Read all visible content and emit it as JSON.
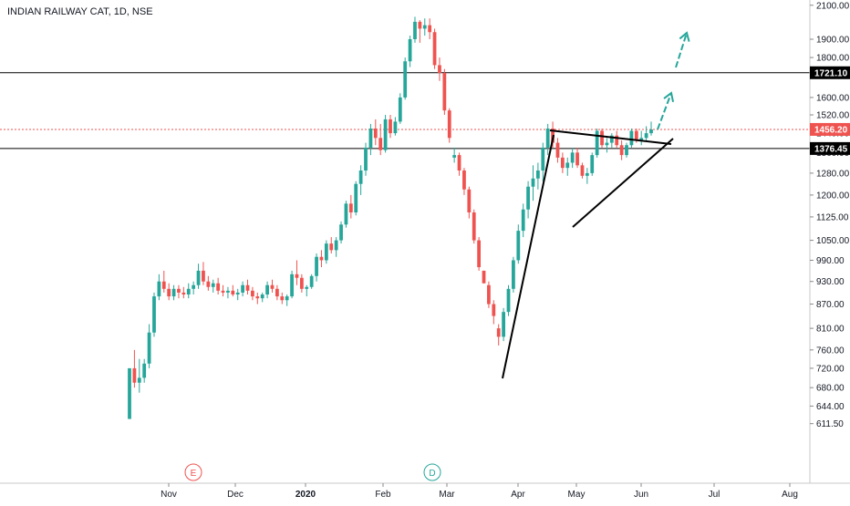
{
  "chart_data": {
    "type": "candlestick",
    "title": "INDIAN RAILWAY CAT, 1D, NSE",
    "y_scale": "log",
    "ylim": [
      600,
      2100
    ],
    "y_ticks": [
      "2100.00",
      "1900.00",
      "1800.00",
      "1600.00",
      "1520.00",
      "1440.00",
      "1360.00",
      "1280.00",
      "1200.00",
      "1125.00",
      "1050.00",
      "990.00",
      "930.00",
      "870.00",
      "810.00",
      "760.00",
      "720.00",
      "680.00",
      "644.00",
      "611.50"
    ],
    "x_labels": [
      {
        "label": "Nov",
        "bold": false
      },
      {
        "label": "Dec",
        "bold": false
      },
      {
        "label": "2020",
        "bold": true
      },
      {
        "label": "Feb",
        "bold": false
      },
      {
        "label": "Mar",
        "bold": false
      },
      {
        "label": "Apr",
        "bold": false
      },
      {
        "label": "May",
        "bold": false
      },
      {
        "label": "Jun",
        "bold": false
      },
      {
        "label": "Jul",
        "bold": false
      },
      {
        "label": "Aug",
        "bold": false
      }
    ],
    "colors": {
      "up": "#26a69a",
      "down": "#ef5350",
      "line": "#000000",
      "arrow": "#26a69a",
      "current": "#ef5350",
      "earnings": "#ef5350",
      "dividend": "#26a69a"
    },
    "price_levels": [
      {
        "value": 1721.1,
        "label": "1721.10",
        "style": "solid",
        "color": "#000000"
      },
      {
        "value": 1456.2,
        "label": "1456.20",
        "style": "dotted",
        "color": "#ef5350"
      },
      {
        "value": 1376.45,
        "label": "1376.45",
        "style": "solid",
        "color": "#000000"
      }
    ],
    "events": [
      {
        "label": "E",
        "kind": "earnings",
        "month": "Nov"
      },
      {
        "label": "D",
        "kind": "dividend",
        "month": "Feb"
      }
    ],
    "candles": [
      [
        620,
        720,
        620,
        720
      ],
      [
        720,
        760,
        680,
        690
      ],
      [
        690,
        740,
        670,
        700
      ],
      [
        700,
        740,
        690,
        730
      ],
      [
        730,
        820,
        720,
        800
      ],
      [
        800,
        900,
        790,
        890
      ],
      [
        890,
        950,
        880,
        930
      ],
      [
        930,
        960,
        900,
        910
      ],
      [
        910,
        925,
        880,
        890
      ],
      [
        890,
        920,
        880,
        910
      ],
      [
        910,
        920,
        885,
        900
      ],
      [
        900,
        915,
        885,
        895
      ],
      [
        895,
        925,
        885,
        910
      ],
      [
        910,
        930,
        895,
        920
      ],
      [
        920,
        980,
        910,
        960
      ],
      [
        960,
        985,
        920,
        930
      ],
      [
        930,
        945,
        905,
        915
      ],
      [
        915,
        935,
        900,
        925
      ],
      [
        925,
        940,
        895,
        905
      ],
      [
        905,
        920,
        890,
        900
      ],
      [
        900,
        915,
        885,
        905
      ],
      [
        905,
        920,
        890,
        895
      ],
      [
        895,
        910,
        880,
        900
      ],
      [
        900,
        930,
        890,
        920
      ],
      [
        920,
        935,
        895,
        905
      ],
      [
        905,
        915,
        880,
        890
      ],
      [
        890,
        900,
        870,
        885
      ],
      [
        885,
        900,
        875,
        895
      ],
      [
        895,
        930,
        885,
        920
      ],
      [
        920,
        935,
        900,
        910
      ],
      [
        910,
        920,
        880,
        890
      ],
      [
        890,
        900,
        870,
        880
      ],
      [
        880,
        895,
        865,
        890
      ],
      [
        890,
        960,
        885,
        950
      ],
      [
        950,
        990,
        920,
        940
      ],
      [
        940,
        950,
        900,
        910
      ],
      [
        910,
        920,
        890,
        915
      ],
      [
        915,
        950,
        910,
        945
      ],
      [
        945,
        1010,
        930,
        1000
      ],
      [
        1000,
        1020,
        970,
        990
      ],
      [
        990,
        1050,
        980,
        1040
      ],
      [
        1040,
        1060,
        1010,
        1020
      ],
      [
        1020,
        1060,
        1000,
        1050
      ],
      [
        1050,
        1110,
        1040,
        1100
      ],
      [
        1100,
        1180,
        1090,
        1170
      ],
      [
        1170,
        1200,
        1120,
        1140
      ],
      [
        1140,
        1250,
        1130,
        1240
      ],
      [
        1240,
        1310,
        1200,
        1290
      ],
      [
        1290,
        1400,
        1270,
        1380
      ],
      [
        1380,
        1480,
        1350,
        1460
      ],
      [
        1460,
        1500,
        1390,
        1420
      ],
      [
        1420,
        1480,
        1350,
        1370
      ],
      [
        1370,
        1520,
        1360,
        1500
      ],
      [
        1500,
        1520,
        1420,
        1440
      ],
      [
        1440,
        1510,
        1430,
        1490
      ],
      [
        1490,
        1620,
        1480,
        1600
      ],
      [
        1600,
        1800,
        1590,
        1780
      ],
      [
        1780,
        1920,
        1750,
        1900
      ],
      [
        1900,
        2030,
        1880,
        2000
      ],
      [
        2000,
        2010,
        1880,
        1960
      ],
      [
        1960,
        2020,
        1920,
        1980
      ],
      [
        1980,
        2020,
        1900,
        1940
      ],
      [
        1940,
        1960,
        1740,
        1760
      ],
      [
        1760,
        1800,
        1680,
        1720
      ],
      [
        1720,
        1740,
        1520,
        1540
      ],
      [
        1540,
        1550,
        1400,
        1420
      ],
      [
        1340,
        1380,
        1320,
        1350
      ],
      [
        1350,
        1360,
        1270,
        1290
      ],
      [
        1290,
        1300,
        1200,
        1220
      ],
      [
        1220,
        1230,
        1120,
        1140
      ],
      [
        1140,
        1150,
        1040,
        1050
      ],
      [
        1050,
        1060,
        960,
        970
      ],
      [
        960,
        960,
        925,
        925
      ],
      [
        920,
        930,
        860,
        870
      ],
      [
        870,
        880,
        820,
        840
      ],
      [
        810,
        820,
        770,
        790
      ],
      [
        790,
        860,
        780,
        850
      ],
      [
        850,
        920,
        840,
        910
      ],
      [
        910,
        1000,
        900,
        990
      ],
      [
        990,
        1100,
        980,
        1080
      ],
      [
        1080,
        1170,
        1060,
        1150
      ],
      [
        1150,
        1250,
        1120,
        1230
      ],
      [
        1230,
        1310,
        1180,
        1260
      ],
      [
        1260,
        1320,
        1220,
        1290
      ],
      [
        1290,
        1400,
        1250,
        1380
      ],
      [
        1380,
        1480,
        1350,
        1460
      ],
      [
        1460,
        1490,
        1380,
        1400
      ],
      [
        1400,
        1420,
        1320,
        1340
      ],
      [
        1340,
        1360,
        1280,
        1300
      ],
      [
        1300,
        1340,
        1270,
        1320
      ],
      [
        1320,
        1380,
        1300,
        1360
      ],
      [
        1360,
        1380,
        1300,
        1310
      ],
      [
        1310,
        1320,
        1260,
        1270
      ],
      [
        1270,
        1300,
        1240,
        1280
      ],
      [
        1280,
        1360,
        1270,
        1350
      ],
      [
        1350,
        1460,
        1340,
        1450
      ],
      [
        1450,
        1460,
        1380,
        1390
      ],
      [
        1390,
        1420,
        1360,
        1400
      ],
      [
        1400,
        1440,
        1380,
        1430
      ],
      [
        1430,
        1450,
        1380,
        1390
      ],
      [
        1390,
        1410,
        1330,
        1350
      ],
      [
        1350,
        1400,
        1340,
        1390
      ],
      [
        1390,
        1460,
        1380,
        1450
      ],
      [
        1450,
        1460,
        1400,
        1410
      ],
      [
        1410,
        1450,
        1390,
        1420
      ],
      [
        1420,
        1470,
        1410,
        1440
      ],
      [
        1440,
        1490,
        1430,
        1456
      ]
    ],
    "annotations": [
      {
        "type": "trendline",
        "desc": "rally from March low"
      },
      {
        "type": "trendline",
        "desc": "triangle upper"
      },
      {
        "type": "trendline",
        "desc": "triangle lower"
      },
      {
        "type": "arrow",
        "desc": "target 1"
      },
      {
        "type": "arrow",
        "desc": "target 2"
      }
    ]
  }
}
